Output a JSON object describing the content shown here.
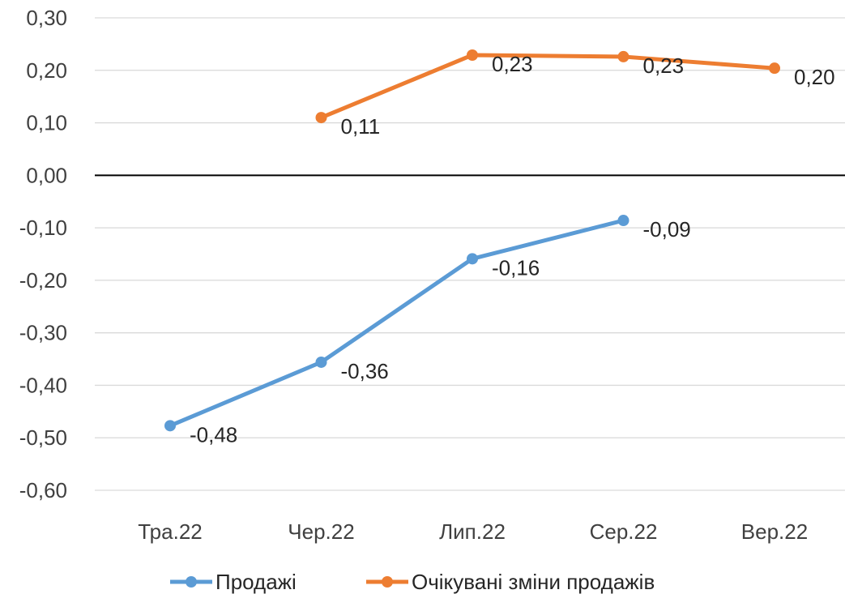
{
  "chart_data": {
    "type": "line",
    "categories": [
      "Тра.22",
      "Чер.22",
      "Лип.22",
      "Сер.22",
      "Вер.22"
    ],
    "series": [
      {
        "name": "Продажі",
        "color": "#5B9BD5",
        "values": [
          -0.477,
          -0.356,
          -0.159,
          -0.086,
          null
        ],
        "labels": [
          "-0,48",
          "-0,36",
          "-0,16",
          "-0,09",
          null
        ]
      },
      {
        "name": "Очікувані зміни продажів",
        "color": "#ED7D31",
        "values": [
          null,
          0.11,
          0.229,
          0.226,
          0.204
        ],
        "labels": [
          null,
          "0,11",
          "0,23",
          "0,23",
          "0,20"
        ]
      }
    ],
    "ylim": [
      -0.6,
      0.3
    ],
    "yticks": [
      0.3,
      0.2,
      0.1,
      0.0,
      -0.1,
      -0.2,
      -0.3,
      -0.4,
      -0.5,
      -0.6
    ],
    "ytick_labels": [
      "0,30",
      "0,20",
      "0,10",
      "0,00",
      "-0,10",
      "-0,20",
      "-0,30",
      "-0,40",
      "-0,50",
      "-0,60"
    ],
    "title": "",
    "xlabel": "",
    "ylabel": "",
    "grid": true,
    "legend": "bottom",
    "gridline_color": "#D9D9D9",
    "zero_line_color": "#000000"
  }
}
